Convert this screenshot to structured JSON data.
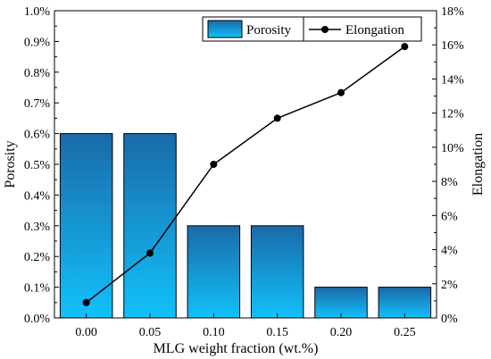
{
  "chart_data": {
    "type": "bar",
    "categories": [
      "0.00",
      "0.05",
      "0.10",
      "0.15",
      "0.20",
      "0.25"
    ],
    "x": [
      0.0,
      0.05,
      0.1,
      0.15,
      0.2,
      0.25
    ],
    "series": [
      {
        "name": "Porosity",
        "type": "bar",
        "axis": "left",
        "values": [
          0.6,
          0.6,
          0.3,
          0.3,
          0.1,
          0.1
        ]
      },
      {
        "name": "Elongation",
        "type": "line",
        "axis": "right",
        "values": [
          0.9,
          3.8,
          9.0,
          11.7,
          13.2,
          15.9
        ]
      }
    ],
    "xlabel": "MLG weight fraction (wt.%)",
    "ylabel": "Porosity",
    "y2label": "Elongation",
    "ylim": [
      0,
      1.0
    ],
    "y2lim": [
      0,
      18
    ],
    "yticks": [
      "0.0%",
      "0.1%",
      "0.2%",
      "0.3%",
      "0.4%",
      "0.5%",
      "0.6%",
      "0.7%",
      "0.8%",
      "0.9%",
      "1.0%"
    ],
    "y2ticks": [
      "0%",
      "2%",
      "4%",
      "6%",
      "8%",
      "10%",
      "12%",
      "14%",
      "16%",
      "18%"
    ],
    "legend": {
      "placement": "top-right",
      "items": [
        "Porosity",
        "Elongation"
      ]
    },
    "grid": false,
    "colors": {
      "bar_top": "#1a6aa8",
      "bar_bottom": "#12c1fb",
      "bar_edge": "#000000",
      "line": "#000000",
      "marker": "#000000"
    }
  }
}
